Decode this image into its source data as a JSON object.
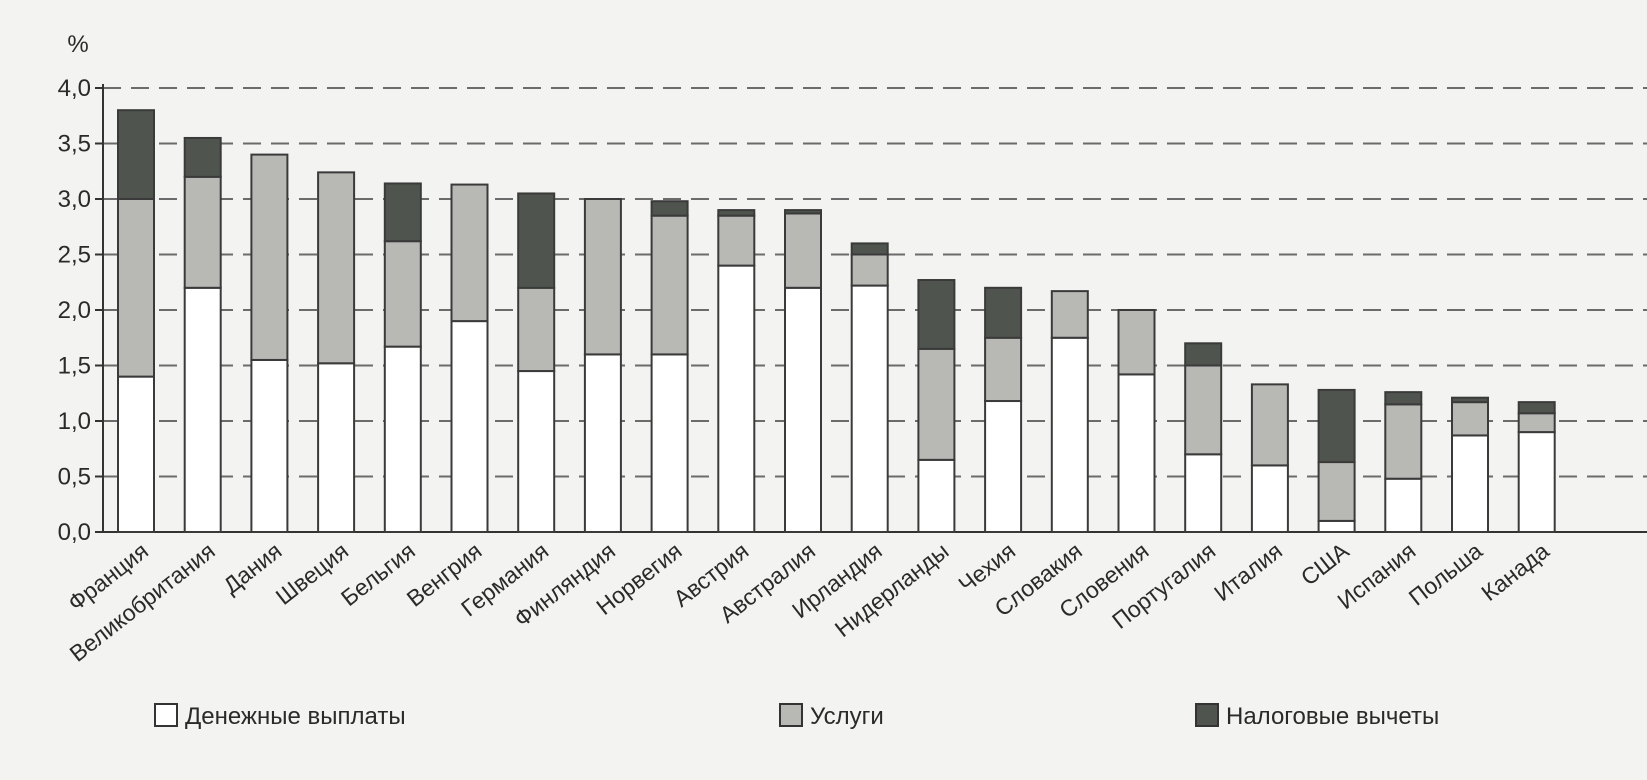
{
  "chart_data": {
    "type": "bar",
    "stacked": true,
    "ylabel": "%",
    "ylim": [
      0,
      4.0
    ],
    "yticks": [
      "0,0",
      "0,5",
      "1,0",
      "1,5",
      "2,0",
      "2,5",
      "3,0",
      "3,5",
      "4,0"
    ],
    "grid": "dashed horizontal",
    "legend_position": "bottom",
    "categories": [
      "Франция",
      "Великобритания",
      "Дания",
      "Швеция",
      "Бельгия",
      "Венгрия",
      "Германия",
      "Финляндия",
      "Норвегия",
      "Австрия",
      "Австралия",
      "Ирландия",
      "Нидерланды",
      "Чехия",
      "Словакия",
      "Словения",
      "Португалия",
      "Италия",
      "США",
      "Испания",
      "Польша",
      "Канада"
    ],
    "series": [
      {
        "name": "Денежные выплаты",
        "color": "#ffffff",
        "values": [
          1.4,
          2.2,
          1.55,
          1.52,
          1.67,
          1.9,
          1.45,
          1.6,
          1.6,
          2.4,
          2.2,
          2.22,
          0.65,
          1.18,
          1.75,
          1.42,
          0.7,
          0.6,
          0.1,
          0.48,
          0.87,
          0.9
        ]
      },
      {
        "name": "Услуги",
        "color": "#b8b8b5",
        "values": [
          1.6,
          1.0,
          1.85,
          1.72,
          0.95,
          1.23,
          0.75,
          1.4,
          1.25,
          0.45,
          0.67,
          0.28,
          1.0,
          0.57,
          0.42,
          0.58,
          0.8,
          0.73,
          0.53,
          0.67,
          0.3,
          0.17
        ]
      },
      {
        "name": "Налоговые вычеты",
        "color": "#4f554e",
        "values": [
          0.8,
          0.35,
          0.0,
          0.0,
          0.52,
          0.0,
          0.85,
          0.0,
          0.13,
          0.05,
          0.03,
          0.1,
          0.62,
          0.45,
          0.0,
          0.0,
          0.2,
          0.0,
          0.65,
          0.11,
          0.04,
          0.1
        ]
      }
    ]
  }
}
